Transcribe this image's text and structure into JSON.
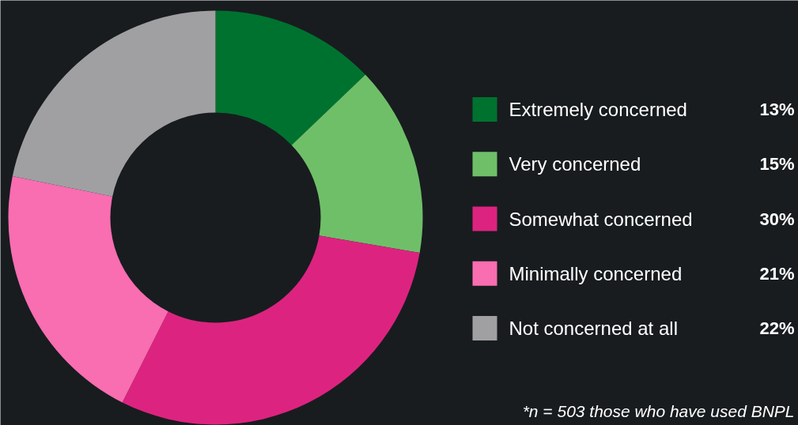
{
  "chart_data": {
    "type": "donut",
    "categories": [
      "Extremely concerned",
      "Very concerned",
      "Somewhat concerned",
      "Minimally concerned",
      "Not concerned at all"
    ],
    "values": [
      13,
      15,
      30,
      21,
      22
    ],
    "colors": [
      "#00722f",
      "#6fbf69",
      "#dd2380",
      "#f96db1",
      "#a0a0a2"
    ],
    "value_labels": [
      "13%",
      "15%",
      "30%",
      "21%",
      "22%"
    ],
    "legend": "right",
    "annotations": [
      "*n = 503 those who have used BNPL"
    ]
  }
}
